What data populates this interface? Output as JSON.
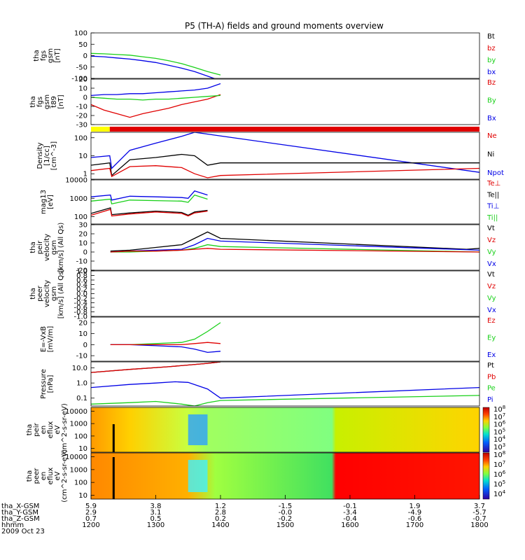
{
  "title": "P5 (TH-A) fields and ground moments overview",
  "colors": {
    "black": "#000000",
    "red": "#e00000",
    "green": "#19d019",
    "blue": "#0000e6",
    "yellow": "#ffff00"
  },
  "chart_data": [
    {
      "type": "line",
      "ylabel": [
        "tha",
        "fgs",
        "gsm",
        "[nT]"
      ],
      "ylim": [
        -100,
        100
      ],
      "ticks": [
        100,
        50,
        0,
        -50,
        -100
      ],
      "legend": [
        {
          "label": "Bt",
          "color": "black"
        },
        {
          "label": "bz",
          "color": "red"
        },
        {
          "label": "by",
          "color": "green"
        },
        {
          "label": "bx",
          "color": "blue"
        }
      ],
      "series": [
        {
          "name": "by",
          "color": "green",
          "x": [
            1200,
            1220,
            1240,
            1260,
            1280,
            1300,
            1320,
            1340,
            1360,
            1380,
            1400
          ],
          "y": [
            10,
            8,
            5,
            2,
            -5,
            -12,
            -22,
            -35,
            -52,
            -70,
            -85
          ]
        },
        {
          "name": "bx",
          "color": "blue",
          "x": [
            1200,
            1220,
            1240,
            1260,
            1280,
            1300,
            1320,
            1340,
            1360,
            1380,
            1400
          ],
          "y": [
            -2,
            -5,
            -10,
            -15,
            -22,
            -30,
            -42,
            -55,
            -70,
            -90,
            -110
          ]
        }
      ]
    },
    {
      "type": "line",
      "ylabel": [
        "tha",
        "fgs",
        "gsm",
        "t89",
        "[nT]"
      ],
      "ylim": [
        -30,
        20
      ],
      "ticks": [
        20,
        10,
        0,
        -10,
        -20,
        -30
      ],
      "legend": [
        {
          "label": "Bz",
          "color": "red"
        },
        {
          "label": "By",
          "color": "green"
        },
        {
          "label": "Bx",
          "color": "blue"
        }
      ],
      "series": [
        {
          "name": "Bz",
          "color": "red",
          "x": [
            1200,
            1220,
            1240,
            1260,
            1280,
            1300,
            1320,
            1340,
            1360,
            1380,
            1400
          ],
          "y": [
            -8,
            -14,
            -18,
            -22,
            -18,
            -15,
            -12,
            -8,
            -5,
            -2,
            3
          ]
        },
        {
          "name": "By",
          "color": "green",
          "x": [
            1200,
            1220,
            1240,
            1260,
            1280,
            1300,
            1320,
            1340,
            1360,
            1380,
            1400
          ],
          "y": [
            0,
            -1,
            -2,
            -2,
            -3,
            -2,
            -2,
            -1,
            0,
            1,
            2
          ]
        },
        {
          "name": "Bx",
          "color": "blue",
          "x": [
            1200,
            1220,
            1240,
            1260,
            1280,
            1300,
            1320,
            1340,
            1360,
            1380,
            1400
          ],
          "y": [
            2,
            3,
            3,
            4,
            4,
            5,
            6,
            7,
            8,
            10,
            15
          ]
        }
      ]
    },
    {
      "type": "mode_bar",
      "segments": [
        {
          "from": 1200,
          "to": 1229,
          "color": "yellow"
        },
        {
          "from": 1229,
          "to": 1800,
          "color": "red"
        }
      ]
    },
    {
      "type": "line",
      "scale": "log",
      "ylabel": [
        "Density",
        "[1/cc]",
        "[cm^-3]"
      ],
      "ylim": [
        0.5,
        200
      ],
      "ticks": [
        100,
        10,
        1
      ],
      "tick_labels": [
        "100",
        "10",
        "1"
      ],
      "legend": [
        {
          "label": "Ne",
          "color": "red"
        },
        {
          "label": "Ni",
          "color": "black"
        },
        {
          "label": "Npot",
          "color": "blue"
        }
      ],
      "series": [
        {
          "name": "Npot",
          "color": "blue",
          "x": [
            1200,
            1229,
            1232,
            1260,
            1300,
            1340,
            1360,
            1800
          ],
          "y": [
            8,
            10,
            2,
            20,
            50,
            120,
            200,
            1.2
          ]
        },
        {
          "name": "Ni",
          "color": "black",
          "x": [
            1200,
            1229,
            1232,
            1260,
            1300,
            1340,
            1360,
            1380,
            1400,
            1800
          ],
          "y": [
            3,
            4,
            0.8,
            6,
            8,
            12,
            10,
            3,
            4,
            4
          ]
        },
        {
          "name": "Ne",
          "color": "red",
          "x": [
            1200,
            1229,
            1232,
            1260,
            1300,
            1340,
            1360,
            1380,
            1400,
            1800
          ],
          "y": [
            1.5,
            2,
            0.7,
            2.5,
            2.8,
            2.2,
            1,
            0.6,
            0.8,
            2
          ]
        }
      ]
    },
    {
      "type": "line",
      "scale": "log",
      "ylabel": [
        "mag13",
        "[eV]"
      ],
      "ylim": [
        40,
        10000
      ],
      "ticks": [
        10000,
        1000,
        100
      ],
      "tick_labels": [
        "10000",
        "1000",
        "100"
      ],
      "legend": [
        {
          "label": "Te⊥",
          "color": "red"
        },
        {
          "label": "Te||",
          "color": "black"
        },
        {
          "label": "Ti⊥",
          "color": "blue"
        },
        {
          "label": "Ti||",
          "color": "green"
        }
      ],
      "series": [
        {
          "name": "Ti⊥",
          "color": "blue",
          "x": [
            1200,
            1230,
            1232,
            1260,
            1300,
            1340,
            1350,
            1360,
            1380
          ],
          "y": [
            1200,
            1500,
            800,
            1300,
            1200,
            1100,
            1000,
            2500,
            1500
          ]
        },
        {
          "name": "Ti||",
          "color": "green",
          "x": [
            1200,
            1230,
            1232,
            1260,
            1300,
            1340,
            1350,
            1360,
            1380
          ],
          "y": [
            700,
            900,
            500,
            800,
            750,
            700,
            600,
            1500,
            900
          ]
        },
        {
          "name": "Te||",
          "color": "black",
          "x": [
            1200,
            1230,
            1232,
            1260,
            1300,
            1340,
            1350,
            1360,
            1380
          ],
          "y": [
            150,
            300,
            130,
            160,
            200,
            170,
            120,
            180,
            220
          ]
        },
        {
          "name": "Te⊥",
          "color": "red",
          "x": [
            1200,
            1230,
            1232,
            1260,
            1300,
            1340,
            1350,
            1360,
            1380
          ],
          "y": [
            120,
            250,
            110,
            140,
            180,
            150,
            110,
            160,
            200
          ]
        }
      ]
    },
    {
      "type": "line",
      "ylabel": [
        "tha",
        "peir",
        "velocity",
        "gsm",
        "[km/s] (All Qs)"
      ],
      "ylim": [
        -20,
        30
      ],
      "ticks": [
        30,
        20,
        10,
        0,
        -10,
        -20
      ],
      "legend": [
        {
          "label": "Vt",
          "color": "black"
        },
        {
          "label": "Vz",
          "color": "red"
        },
        {
          "label": "Vy",
          "color": "green"
        },
        {
          "label": "Vx",
          "color": "blue"
        }
      ],
      "series": [
        {
          "name": "Vt",
          "color": "black",
          "x": [
            1230,
            1260,
            1300,
            1340,
            1360,
            1380,
            1400,
            1780,
            1800
          ],
          "y": [
            1,
            2,
            5,
            8,
            15,
            22,
            15,
            3,
            4
          ]
        },
        {
          "name": "Vx",
          "color": "blue",
          "x": [
            1230,
            1260,
            1300,
            1340,
            1360,
            1380,
            1400,
            1800
          ],
          "y": [
            0,
            1,
            2,
            3,
            8,
            15,
            12,
            2
          ]
        },
        {
          "name": "Vy",
          "color": "green",
          "x": [
            1230,
            1260,
            1300,
            1340,
            1360,
            1380,
            1400,
            1800
          ],
          "y": [
            0,
            0,
            1,
            2,
            4,
            8,
            6,
            0
          ]
        },
        {
          "name": "Vz",
          "color": "red",
          "x": [
            1230,
            1260,
            1300,
            1340,
            1360,
            1380,
            1400,
            1800
          ],
          "y": [
            0,
            1,
            1,
            2,
            3,
            4,
            3,
            0
          ]
        }
      ]
    },
    {
      "type": "line",
      "ylabel": [
        "tha",
        "peer",
        "velocity",
        "gsm",
        "[km/s] (All Qs)"
      ],
      "ylim": [
        -1.0,
        1.0
      ],
      "ticks": [
        1.0,
        0.8,
        0.6,
        0.4,
        0.2,
        0.0,
        -0.2,
        -0.4,
        -0.6,
        -0.8,
        -1.0
      ],
      "tick_labels": [
        "1.0",
        "0.8",
        "0.6",
        "0.4",
        "0.2",
        "0.0",
        "-0.2",
        "-0.4",
        "-0.6",
        "-0.8",
        "-1.0"
      ],
      "legend": [
        {
          "label": "Vt",
          "color": "black"
        },
        {
          "label": "Vz",
          "color": "red"
        },
        {
          "label": "Vy",
          "color": "green"
        },
        {
          "label": "Vx",
          "color": "blue"
        }
      ],
      "series": []
    },
    {
      "type": "line",
      "ylabel": [
        "E=-VxB",
        "[mV/m]"
      ],
      "ylim": [
        -15,
        25
      ],
      "ticks": [
        20,
        10,
        0,
        -10
      ],
      "legend": [
        {
          "label": "Ez",
          "color": "red"
        },
        {
          "label": "Ey",
          "color": "green"
        },
        {
          "label": "Ex",
          "color": "blue"
        }
      ],
      "series": [
        {
          "name": "Ey",
          "color": "green",
          "x": [
            1230,
            1260,
            1300,
            1340,
            1360,
            1380,
            1400
          ],
          "y": [
            0,
            0,
            1,
            2,
            5,
            12,
            20
          ]
        },
        {
          "name": "Ex",
          "color": "blue",
          "x": [
            1230,
            1260,
            1300,
            1340,
            1360,
            1380,
            1400
          ],
          "y": [
            0,
            0,
            -1,
            -2,
            -4,
            -7,
            -6
          ]
        },
        {
          "name": "Ez",
          "color": "red",
          "x": [
            1230,
            1260,
            1300,
            1340,
            1360,
            1380,
            1400
          ],
          "y": [
            0,
            0,
            0,
            0,
            1,
            2,
            1
          ]
        }
      ]
    },
    {
      "type": "line",
      "scale": "log",
      "ylabel": [
        "Pressure",
        "[nPa]"
      ],
      "ylim": [
        0.03,
        25
      ],
      "ticks": [
        10,
        1,
        0.1
      ],
      "tick_labels": [
        "10.0",
        "1.0",
        "0.1"
      ],
      "legend": [
        {
          "label": "Pt",
          "color": "black"
        },
        {
          "label": "Pb",
          "color": "red"
        },
        {
          "label": "Pe",
          "color": "green"
        },
        {
          "label": "Pi",
          "color": "blue"
        }
      ],
      "series": [
        {
          "name": "Pt",
          "color": "black",
          "x": [
            1200,
            1260,
            1320,
            1380,
            1400
          ],
          "y": [
            5,
            8,
            12,
            20,
            25
          ]
        },
        {
          "name": "Pb",
          "color": "red",
          "x": [
            1200,
            1260,
            1320,
            1380,
            1400
          ],
          "y": [
            5,
            8,
            12,
            20,
            25
          ]
        },
        {
          "name": "Pi",
          "color": "blue",
          "x": [
            1200,
            1260,
            1300,
            1330,
            1350,
            1380,
            1400,
            1800
          ],
          "y": [
            0.5,
            0.8,
            1.0,
            1.2,
            1.1,
            0.4,
            0.1,
            0.5
          ]
        },
        {
          "name": "Pe",
          "color": "green",
          "x": [
            1200,
            1260,
            1300,
            1340,
            1360,
            1380,
            1400,
            1800
          ],
          "y": [
            0.04,
            0.05,
            0.06,
            0.04,
            0.03,
            0.05,
            0.07,
            0.15
          ]
        }
      ]
    },
    {
      "type": "heatmap",
      "scale": "log",
      "ylabel": [
        "tha",
        "peir",
        "en",
        "eflux",
        "eV",
        "(cm^2-s-sr-eV)"
      ],
      "ylim": [
        5,
        20000
      ],
      "ticks": [
        10000,
        1000,
        100,
        10
      ],
      "tick_labels": [
        "10000",
        "1000",
        "100",
        "10"
      ],
      "colorbar": {
        "min_exp": 3,
        "max_exp": 8,
        "labels": [
          "10^8",
          "10^7",
          "10^6",
          "10^5",
          "10^4",
          "10^3"
        ]
      }
    },
    {
      "type": "heatmap",
      "scale": "log",
      "ylabel": [
        "tha",
        "peer",
        "en",
        "eflux",
        "eV",
        "(cm^2-s-sr-eV)"
      ],
      "ylim": [
        5,
        20000
      ],
      "ticks": [
        10000,
        1000,
        100,
        10
      ],
      "tick_labels": [
        "10000",
        "1000",
        "100",
        "10"
      ],
      "colorbar": {
        "min_exp": 4,
        "max_exp": 8,
        "labels": [
          "10^8",
          "10^7",
          "10^6",
          "10^5",
          "10^4"
        ]
      }
    }
  ],
  "x_axis": {
    "rows": [
      {
        "label": "tha_X-GSM",
        "values": [
          "5.9",
          "3.8",
          "1.2",
          "-1.5",
          "-0.1",
          "1.9",
          "3.7"
        ]
      },
      {
        "label": "tha_Y-GSM",
        "values": [
          "2.9",
          "3.1",
          "2.8",
          "-0.0",
          "-3.4",
          "-4.9",
          "-5.7"
        ]
      },
      {
        "label": "tha_Z-GSM",
        "values": [
          "0.7",
          "0.5",
          "0.2",
          "-0.2",
          "-0.4",
          "-0.6",
          "-0.7"
        ]
      },
      {
        "label": "hhmm",
        "values": [
          "1200",
          "1300",
          "1400",
          "1500",
          "1600",
          "1700",
          "1800"
        ]
      }
    ],
    "date": "2009 Oct 23",
    "xlim": [
      1200,
      1800
    ]
  }
}
